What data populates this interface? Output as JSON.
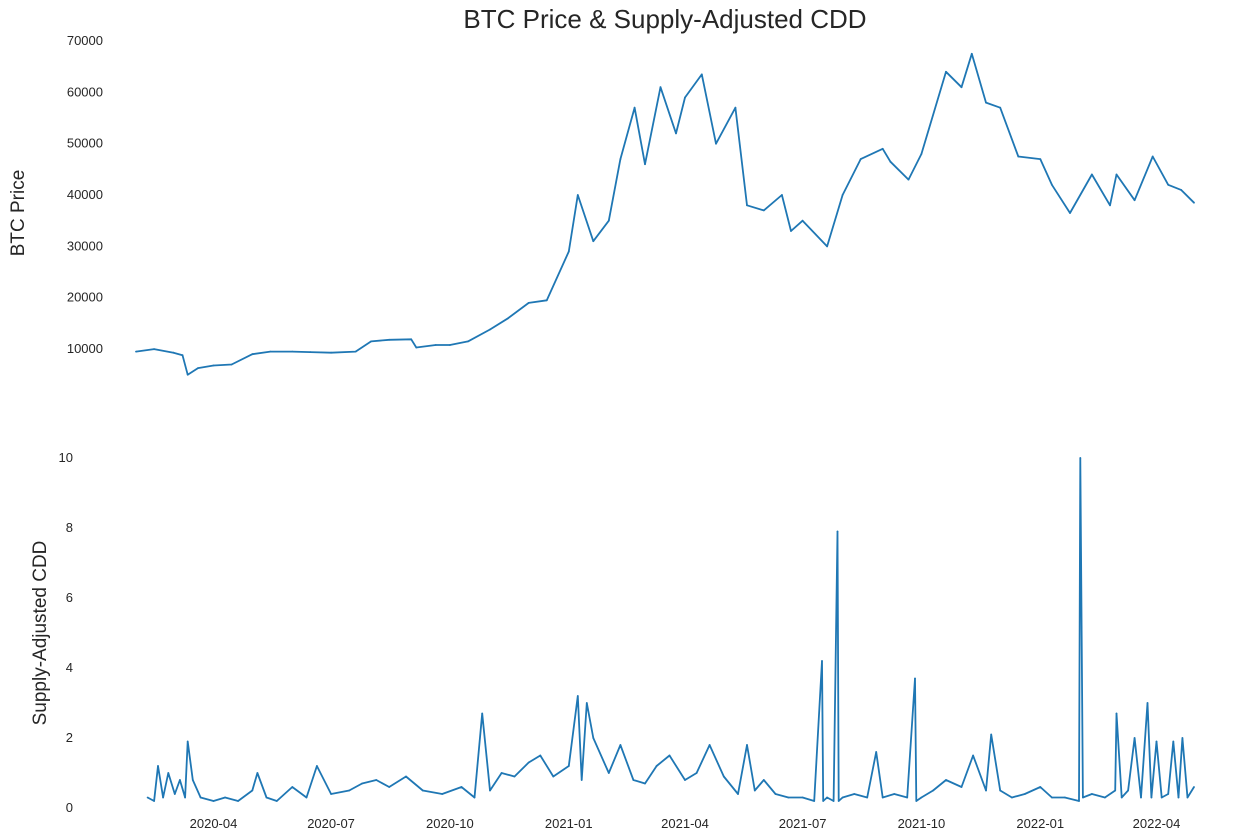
{
  "title": "BTC Price & Supply-Adjusted CDD",
  "line_color": "#1f77b4",
  "chart_data": [
    {
      "type": "line",
      "ylabel": "BTC  Price",
      "ylim": [
        3000,
        70000
      ],
      "yticks": [
        10000,
        20000,
        30000,
        40000,
        50000,
        60000,
        70000
      ],
      "grid": false,
      "series": [
        {
          "x": [
            "2020-02-01",
            "2020-02-15",
            "2020-03-01",
            "2020-03-08",
            "2020-03-12",
            "2020-03-20",
            "2020-04-01",
            "2020-04-15",
            "2020-05-01",
            "2020-05-15",
            "2020-06-01",
            "2020-06-15",
            "2020-07-01",
            "2020-07-20",
            "2020-08-01",
            "2020-08-15",
            "2020-09-01",
            "2020-09-05",
            "2020-09-20",
            "2020-10-01",
            "2020-10-15",
            "2020-11-01",
            "2020-11-15",
            "2020-12-01",
            "2020-12-15",
            "2021-01-01",
            "2021-01-08",
            "2021-01-20",
            "2021-02-01",
            "2021-02-10",
            "2021-02-21",
            "2021-03-01",
            "2021-03-13",
            "2021-03-25",
            "2021-04-01",
            "2021-04-14",
            "2021-04-25",
            "2021-05-10",
            "2021-05-19",
            "2021-06-01",
            "2021-06-15",
            "2021-06-22",
            "2021-07-01",
            "2021-07-20",
            "2021-08-01",
            "2021-08-15",
            "2021-09-01",
            "2021-09-07",
            "2021-09-21",
            "2021-10-01",
            "2021-10-20",
            "2021-11-01",
            "2021-11-09",
            "2021-11-20",
            "2021-12-01",
            "2021-12-15",
            "2022-01-01",
            "2022-01-10",
            "2022-01-24",
            "2022-02-10",
            "2022-02-24",
            "2022-03-01",
            "2022-03-15",
            "2022-03-29",
            "2022-04-10",
            "2022-04-20",
            "2022-04-30"
          ],
          "y": [
            9500,
            10000,
            9300,
            8800,
            5000,
            6300,
            6800,
            7000,
            9000,
            9500,
            9500,
            9400,
            9300,
            9500,
            11500,
            11800,
            11900,
            10300,
            10800,
            10800,
            11500,
            13800,
            16000,
            19000,
            19500,
            29000,
            40000,
            31000,
            35000,
            47000,
            57000,
            46000,
            61000,
            52000,
            59000,
            63500,
            50000,
            57000,
            38000,
            37000,
            40000,
            33000,
            35000,
            30000,
            40000,
            47000,
            49000,
            46500,
            43000,
            48000,
            64000,
            61000,
            67500,
            58000,
            57000,
            47500,
            47000,
            42000,
            36500,
            44000,
            38000,
            44000,
            39000,
            47500,
            42000,
            41000,
            38500
          ]
        }
      ]
    },
    {
      "type": "line",
      "ylabel": "Supply-Adjusted CDD",
      "ylim": [
        0,
        10
      ],
      "yticks": [
        0,
        2,
        4,
        6,
        8,
        10
      ],
      "xticks": [
        "2020-04",
        "2020-07",
        "2020-10",
        "2021-01",
        "2021-04",
        "2021-07",
        "2021-10",
        "2022-01",
        "2022-04"
      ],
      "grid": false,
      "series": [
        {
          "x": [
            "2020-02-10",
            "2020-02-15",
            "2020-02-18",
            "2020-02-22",
            "2020-02-26",
            "2020-03-02",
            "2020-03-06",
            "2020-03-10",
            "2020-03-12",
            "2020-03-16",
            "2020-03-22",
            "2020-04-01",
            "2020-04-10",
            "2020-04-20",
            "2020-05-01",
            "2020-05-05",
            "2020-05-12",
            "2020-05-20",
            "2020-06-01",
            "2020-06-12",
            "2020-06-20",
            "2020-07-01",
            "2020-07-15",
            "2020-07-25",
            "2020-08-05",
            "2020-08-15",
            "2020-08-28",
            "2020-09-10",
            "2020-09-25",
            "2020-10-10",
            "2020-10-20",
            "2020-10-26",
            "2020-11-01",
            "2020-11-10",
            "2020-11-20",
            "2020-12-01",
            "2020-12-10",
            "2020-12-20",
            "2021-01-01",
            "2021-01-08",
            "2021-01-11",
            "2021-01-15",
            "2021-01-20",
            "2021-02-01",
            "2021-02-10",
            "2021-02-20",
            "2021-03-01",
            "2021-03-10",
            "2021-03-20",
            "2021-04-01",
            "2021-04-10",
            "2021-04-20",
            "2021-05-01",
            "2021-05-12",
            "2021-05-19",
            "2021-05-25",
            "2021-06-01",
            "2021-06-10",
            "2021-06-20",
            "2021-07-01",
            "2021-07-10",
            "2021-07-16",
            "2021-07-17",
            "2021-07-20",
            "2021-07-25",
            "2021-07-28",
            "2021-07-29",
            "2021-08-01",
            "2021-08-10",
            "2021-08-20",
            "2021-08-27",
            "2021-09-01",
            "2021-09-10",
            "2021-09-20",
            "2021-09-26",
            "2021-09-27",
            "2021-10-01",
            "2021-10-10",
            "2021-10-20",
            "2021-11-01",
            "2021-11-10",
            "2021-11-20",
            "2021-11-24",
            "2021-12-01",
            "2021-12-10",
            "2021-12-20",
            "2022-01-01",
            "2022-01-10",
            "2022-01-20",
            "2022-01-31",
            "2022-02-01",
            "2022-02-03",
            "2022-02-10",
            "2022-02-20",
            "2022-02-28",
            "2022-03-01",
            "2022-03-05",
            "2022-03-10",
            "2022-03-15",
            "2022-03-20",
            "2022-03-25",
            "2022-03-28",
            "2022-04-01",
            "2022-04-05",
            "2022-04-10",
            "2022-04-14",
            "2022-04-18",
            "2022-04-21",
            "2022-04-25",
            "2022-04-30"
          ],
          "y": [
            0.3,
            0.2,
            1.2,
            0.3,
            1.0,
            0.4,
            0.8,
            0.3,
            1.9,
            0.8,
            0.3,
            0.2,
            0.3,
            0.2,
            0.5,
            1.0,
            0.3,
            0.2,
            0.6,
            0.3,
            1.2,
            0.4,
            0.5,
            0.7,
            0.8,
            0.6,
            0.9,
            0.5,
            0.4,
            0.6,
            0.3,
            2.7,
            0.5,
            1.0,
            0.9,
            1.3,
            1.5,
            0.9,
            1.2,
            3.2,
            0.8,
            3.0,
            2.0,
            1.0,
            1.8,
            0.8,
            0.7,
            1.2,
            1.5,
            0.8,
            1.0,
            1.8,
            0.9,
            0.4,
            1.8,
            0.5,
            0.8,
            0.4,
            0.3,
            0.3,
            0.2,
            4.2,
            0.2,
            0.3,
            0.2,
            7.9,
            0.2,
            0.3,
            0.4,
            0.3,
            1.6,
            0.3,
            0.4,
            0.3,
            3.7,
            0.2,
            0.3,
            0.5,
            0.8,
            0.6,
            1.5,
            0.5,
            2.1,
            0.5,
            0.3,
            0.4,
            0.6,
            0.3,
            0.3,
            0.2,
            10.0,
            0.3,
            0.4,
            0.3,
            0.5,
            2.7,
            0.3,
            0.5,
            2.0,
            0.3,
            3.0,
            0.3,
            1.9,
            0.3,
            0.4,
            1.9,
            0.3,
            2.0,
            0.3,
            0.6
          ]
        }
      ]
    }
  ]
}
